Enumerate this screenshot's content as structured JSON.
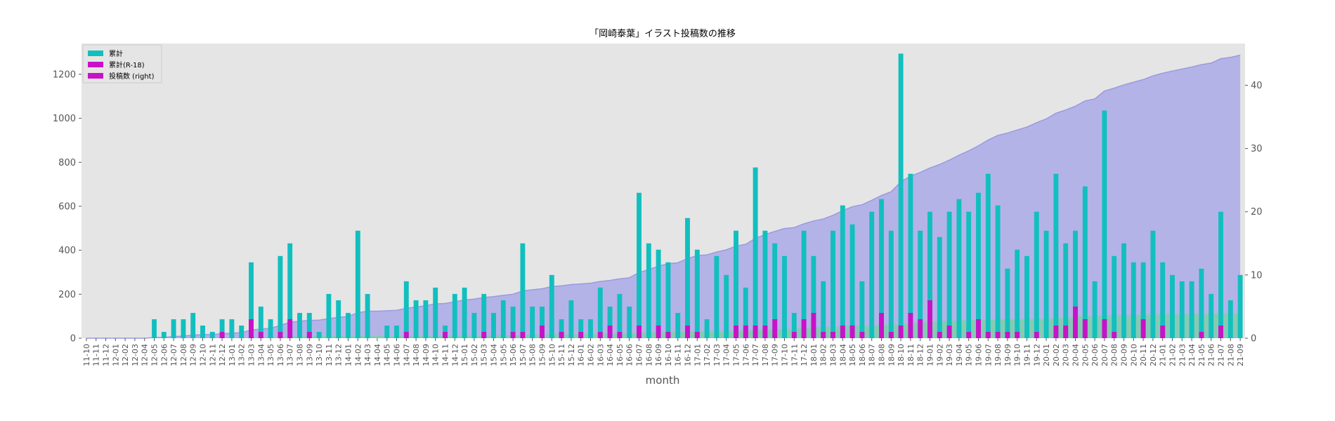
{
  "chart_data": {
    "type": "bar",
    "title": "「岡崎泰葉」イラスト投稿数の推移",
    "xlabel": "month",
    "ylabel": "",
    "ylim_left": [
      0,
      1340
    ],
    "ylim_right": [
      0,
      46.6
    ],
    "left_ticks": [
      0,
      200,
      400,
      600,
      800,
      1000,
      1200
    ],
    "right_ticks": [
      0,
      10,
      20,
      30,
      40
    ],
    "grid": false,
    "legend_position": "top-left",
    "categories": [
      "11-10",
      "11-11",
      "11-12",
      "12-01",
      "12-02",
      "12-03",
      "12-04",
      "12-05",
      "12-06",
      "12-07",
      "12-08",
      "12-09",
      "12-10",
      "12-11",
      "12-12",
      "13-01",
      "13-02",
      "13-03",
      "13-04",
      "13-05",
      "13-06",
      "13-07",
      "13-08",
      "13-09",
      "13-10",
      "13-11",
      "13-12",
      "14-01",
      "14-02",
      "14-03",
      "14-04",
      "14-05",
      "14-06",
      "14-07",
      "14-08",
      "14-09",
      "14-10",
      "14-11",
      "14-12",
      "15-01",
      "15-02",
      "15-03",
      "15-04",
      "15-05",
      "15-06",
      "15-07",
      "15-08",
      "15-09",
      "15-10",
      "15-11",
      "15-12",
      "16-01",
      "16-02",
      "16-03",
      "16-04",
      "16-05",
      "16-06",
      "16-07",
      "16-08",
      "16-09",
      "16-10",
      "16-11",
      "16-12",
      "17-01",
      "17-02",
      "17-03",
      "17-04",
      "17-05",
      "17-06",
      "17-07",
      "17-08",
      "17-09",
      "17-10",
      "17-11",
      "17-12",
      "18-01",
      "18-02",
      "18-03",
      "18-04",
      "18-05",
      "18-06",
      "18-07",
      "18-08",
      "18-09",
      "18-10",
      "18-11",
      "18-12",
      "19-01",
      "19-02",
      "19-03",
      "19-04",
      "19-05",
      "19-06",
      "19-07",
      "19-08",
      "19-09",
      "19-10",
      "19-11",
      "19-12",
      "20-01",
      "20-02",
      "20-03",
      "20-04",
      "20-05",
      "20-06",
      "20-07",
      "20-08",
      "20-09",
      "20-10",
      "20-11",
      "20-12",
      "21-01",
      "21-02",
      "21-03",
      "21-04",
      "21-05",
      "21-06",
      "21-07",
      "21-08",
      "21-09"
    ],
    "series": [
      {
        "name": "累計",
        "kind": "area",
        "axis": "left",
        "color": "#b3b3e8",
        "edge_color": "#9a9ae0",
        "values": [
          0,
          0,
          0,
          0,
          0,
          0,
          0,
          3,
          4,
          7,
          10,
          14,
          16,
          17,
          20,
          23,
          25,
          37,
          42,
          45,
          58,
          73,
          77,
          81,
          82,
          89,
          95,
          99,
          116,
          123,
          123,
          125,
          127,
          136,
          142,
          148,
          156,
          158,
          166,
          174,
          178,
          185,
          189,
          195,
          200,
          215,
          220,
          225,
          235,
          238,
          244,
          247,
          250,
          258,
          263,
          270,
          275,
          298,
          313,
          327,
          339,
          343,
          362,
          376,
          379,
          392,
          402,
          419,
          427,
          454,
          471,
          486,
          499,
          503,
          520,
          533,
          542,
          559,
          580,
          598,
          607,
          627,
          649,
          666,
          711,
          737,
          754,
          774,
          790,
          810,
          832,
          852,
          875,
          901,
          922,
          933,
          947,
          960,
          980,
          997,
          1023,
          1038,
          1055,
          1079,
          1088,
          1124,
          1137,
          1152,
          1164,
          1176,
          1193,
          1205,
          1215,
          1224,
          1233,
          1244,
          1251,
          1271,
          1277,
          1287
        ]
      },
      {
        "name": "累計(R-18)",
        "kind": "area",
        "axis": "left",
        "color": "#7ccfa6",
        "values": [
          0,
          0,
          0,
          0,
          0,
          0,
          0,
          0,
          0,
          0,
          0,
          0,
          0,
          0,
          1,
          1,
          1,
          4,
          5,
          5,
          6,
          9,
          9,
          10,
          10,
          10,
          10,
          10,
          10,
          10,
          10,
          10,
          10,
          11,
          11,
          11,
          11,
          12,
          12,
          12,
          12,
          13,
          13,
          13,
          14,
          15,
          15,
          17,
          17,
          18,
          18,
          19,
          19,
          20,
          22,
          23,
          23,
          25,
          25,
          27,
          28,
          28,
          30,
          31,
          31,
          31,
          31,
          33,
          35,
          37,
          39,
          42,
          42,
          43,
          46,
          50,
          51,
          52,
          54,
          56,
          57,
          57,
          61,
          62,
          64,
          68,
          71,
          77,
          78,
          80,
          80,
          81,
          84,
          85,
          86,
          87,
          88,
          88,
          89,
          89,
          91,
          93,
          98,
          101,
          101,
          104,
          105,
          105,
          105,
          108,
          108,
          110,
          110,
          110,
          110,
          111,
          111,
          113,
          113,
          113
        ]
      },
      {
        "name": "投稿数 (right)",
        "kind": "bar",
        "axis": "right",
        "color": "#12bfbf",
        "values": [
          0,
          0,
          0,
          0,
          0,
          0,
          0,
          3,
          1,
          3,
          3,
          4,
          2,
          1,
          3,
          3,
          2,
          12,
          5,
          3,
          13,
          15,
          4,
          4,
          1,
          7,
          6,
          4,
          17,
          7,
          0,
          2,
          2,
          9,
          6,
          6,
          8,
          2,
          7,
          8,
          4,
          7,
          4,
          6,
          5,
          15,
          5,
          5,
          10,
          3,
          6,
          3,
          3,
          8,
          5,
          7,
          5,
          23,
          15,
          14,
          12,
          4,
          19,
          14,
          3,
          13,
          10,
          17,
          8,
          27,
          17,
          15,
          13,
          4,
          17,
          13,
          9,
          17,
          21,
          18,
          9,
          20,
          22,
          17,
          45,
          26,
          17,
          20,
          16,
          20,
          22,
          20,
          23,
          26,
          21,
          11,
          14,
          13,
          20,
          17,
          26,
          15,
          17,
          24,
          9,
          36,
          13,
          15,
          12,
          12,
          17,
          12,
          10,
          9,
          9,
          11,
          7,
          20,
          6,
          10
        ]
      },
      {
        "name": "R-18",
        "kind": "bar",
        "axis": "right",
        "color": "#c812c8",
        "values": [
          0,
          0,
          0,
          0,
          0,
          0,
          0,
          0,
          0,
          0,
          0,
          0,
          0,
          0,
          1,
          0,
          0,
          3,
          1,
          0,
          1,
          3,
          0,
          1,
          0,
          0,
          0,
          0,
          0,
          0,
          0,
          0,
          0,
          1,
          0,
          0,
          0,
          1,
          0,
          0,
          0,
          1,
          0,
          0,
          1,
          1,
          0,
          2,
          0,
          1,
          0,
          1,
          0,
          1,
          2,
          1,
          0,
          2,
          0,
          2,
          1,
          0,
          2,
          1,
          0,
          0,
          0,
          2,
          2,
          2,
          2,
          3,
          0,
          1,
          3,
          4,
          1,
          1,
          2,
          2,
          1,
          0,
          4,
          1,
          2,
          4,
          3,
          6,
          1,
          2,
          0,
          1,
          3,
          1,
          1,
          1,
          1,
          0,
          1,
          0,
          2,
          2,
          5,
          3,
          0,
          3,
          1,
          0,
          0,
          3,
          0,
          2,
          0,
          0,
          0,
          1,
          0,
          2,
          0,
          0
        ]
      }
    ],
    "legend": [
      {
        "label": "累計",
        "color": "#12bfbf"
      },
      {
        "label": "累計(R-18)",
        "color": "#c812c8"
      },
      {
        "label": "投稿数 (right)",
        "color": "#c812c8"
      }
    ]
  }
}
